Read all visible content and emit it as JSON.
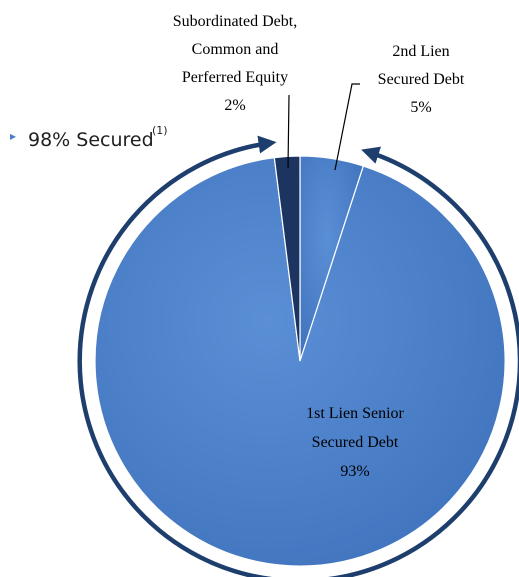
{
  "chart_data": {
    "type": "pie",
    "slices": [
      {
        "label_lines": [
          "2nd Lien",
          "Secured Debt"
        ],
        "value": 5,
        "value_label": "5%",
        "color": "#4a7fc9"
      },
      {
        "label_lines": [
          "1st Lien Senior",
          "Secured Debt"
        ],
        "value": 93,
        "value_label": "93%",
        "color": "#4a7fc9"
      },
      {
        "label_lines": [
          "Subordinated Debt,",
          "Common and",
          "Perferred Equity"
        ],
        "value": 2,
        "value_label": "2%",
        "color": "#1c3560"
      }
    ],
    "annotation": {
      "bullet": "▸",
      "text": "98% Secured",
      "superscript": "(1)"
    },
    "colors": {
      "slice_main": "#4a7fc9",
      "slice_edge": "#3e71bb",
      "slice_equity": "#1c3560",
      "arrow": "#1e3f6e",
      "separator": "#ffffff"
    }
  }
}
